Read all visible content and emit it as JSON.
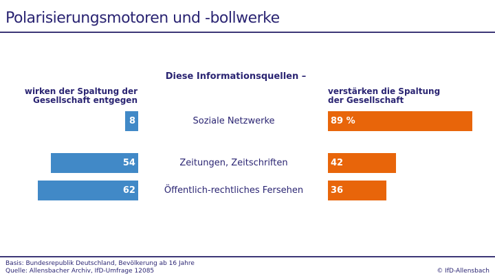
{
  "title": "Polarisierungsmotoren und -bollwerke",
  "chart_data": {
    "type": "bar",
    "title": "Diese Informationsquellen –",
    "categories": [
      "Soziale Netzwerke",
      "Zeitungen, Zeitschriften",
      "Öffentlich-rechtliches Fersehen"
    ],
    "series": [
      {
        "name": "wirken der Spaltung der Gesellschaft entgegen",
        "values": [
          8,
          54,
          62
        ],
        "labels": [
          "8",
          "54",
          "62"
        ],
        "color": "#4189c7"
      },
      {
        "name": "verstärken die Spaltung der Gesellschaft",
        "values": [
          89,
          42,
          36
        ],
        "labels": [
          "89 %",
          "42",
          "36"
        ],
        "color": "#e8650a"
      }
    ],
    "left_header": [
      "wirken der Spaltung der",
      "Gesellschaft entgegen"
    ],
    "right_header": [
      "verstärken die Spaltung",
      "der Gesellschaft"
    ]
  },
  "footer": {
    "basis": "Basis: Bundesrepublik Deutschland, Bevölkerung ab 16 Jahre",
    "quelle": "Quelle: Allensbacher Archiv, IfD-Umfrage 12085",
    "copyright": "© IfD-Allensbach"
  }
}
